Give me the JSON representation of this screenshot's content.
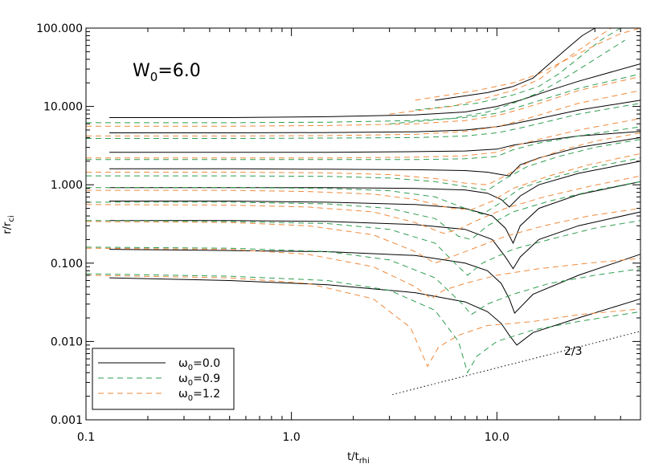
{
  "chart_data": {
    "type": "line",
    "xscale": "log",
    "yscale": "log",
    "xlim": [
      0.1,
      50
    ],
    "ylim": [
      0.001,
      100
    ],
    "xlabel_main": "t/t",
    "xlabel_sub": "rhi",
    "ylabel_main": "r/r",
    "ylabel_sub": "ci",
    "x_ticks": [
      {
        "v": 0.1,
        "label": "0.1"
      },
      {
        "v": 1.0,
        "label": "1.0"
      },
      {
        "v": 10.0,
        "label": "10.0"
      }
    ],
    "y_ticks": [
      {
        "v": 0.001,
        "label": "0.001"
      },
      {
        "v": 0.01,
        "label": "0.010"
      },
      {
        "v": 0.1,
        "label": "0.100"
      },
      {
        "v": 1.0,
        "label": "1.000"
      },
      {
        "v": 10.0,
        "label": "10.000"
      },
      {
        "v": 100.0,
        "label": "100.000"
      }
    ],
    "annotation": {
      "main": "W",
      "sub": "0",
      "rest": "=6.0"
    },
    "slope_line": {
      "x": [
        3.1,
        50
      ],
      "y": [
        0.0021,
        0.0135
      ],
      "label": "2/3"
    },
    "legend": [
      {
        "main": "ω",
        "sub": "0",
        "rest": "=0.0",
        "color": "#000000",
        "dash": "solid"
      },
      {
        "main": "ω",
        "sub": "0",
        "rest": "=0.9",
        "color": "#2e9e52",
        "dash": "dashed"
      },
      {
        "main": "ω",
        "sub": "0",
        "rest": "=1.2",
        "color": "#ef8a3c",
        "dash": "dashed"
      }
    ],
    "series": [
      {
        "group": "w0.0",
        "color": "#000000",
        "dash": "solid",
        "x": [
          0.13,
          0.5,
          1.5,
          4,
          7,
          9,
          10.5,
          11.5,
          12.5,
          15,
          25,
          50
        ],
        "y": [
          0.065,
          0.06,
          0.053,
          0.042,
          0.032,
          0.024,
          0.017,
          0.012,
          0.009,
          0.013,
          0.02,
          0.035
        ]
      },
      {
        "group": "w0.0",
        "color": "#000000",
        "dash": "solid",
        "x": [
          0.13,
          0.5,
          1.5,
          4,
          7,
          9,
          10.5,
          11.5,
          12.2,
          15,
          25,
          50
        ],
        "y": [
          0.15,
          0.145,
          0.14,
          0.125,
          0.1,
          0.08,
          0.055,
          0.035,
          0.023,
          0.04,
          0.07,
          0.13
        ]
      },
      {
        "group": "w0.0",
        "color": "#000000",
        "dash": "solid",
        "x": [
          0.13,
          0.5,
          1.5,
          4,
          7,
          9.5,
          11,
          12,
          13,
          16,
          25,
          50
        ],
        "y": [
          0.35,
          0.35,
          0.34,
          0.31,
          0.27,
          0.2,
          0.12,
          0.085,
          0.12,
          0.2,
          0.3,
          0.45
        ]
      },
      {
        "group": "w0.0",
        "color": "#000000",
        "dash": "solid",
        "x": [
          0.13,
          0.5,
          1.5,
          4,
          7,
          9.5,
          11,
          12,
          13,
          16,
          25,
          50
        ],
        "y": [
          0.62,
          0.62,
          0.6,
          0.56,
          0.5,
          0.4,
          0.28,
          0.18,
          0.3,
          0.5,
          0.75,
          1.1
        ]
      },
      {
        "group": "w0.0",
        "color": "#000000",
        "dash": "solid",
        "x": [
          0.13,
          0.5,
          1.5,
          4,
          7,
          9,
          10.5,
          11.5,
          13,
          16,
          25,
          50
        ],
        "y": [
          0.92,
          0.92,
          0.92,
          0.9,
          0.86,
          0.78,
          0.65,
          0.52,
          0.72,
          1.0,
          1.4,
          2.0
        ]
      },
      {
        "group": "w0.0",
        "color": "#000000",
        "dash": "solid",
        "x": [
          0.13,
          0.5,
          1.5,
          4,
          7,
          9,
          10.5,
          11.5,
          13,
          16,
          25,
          50
        ],
        "y": [
          1.6,
          1.6,
          1.58,
          1.56,
          1.52,
          1.45,
          1.35,
          1.3,
          1.8,
          2.2,
          3.0,
          4.0
        ]
      },
      {
        "group": "w0.0",
        "color": "#000000",
        "dash": "solid",
        "x": [
          0.13,
          0.5,
          1.5,
          4,
          7,
          10,
          12,
          16,
          25,
          50
        ],
        "y": [
          2.6,
          2.6,
          2.6,
          2.65,
          2.7,
          2.85,
          3.2,
          3.6,
          4.2,
          4.8
        ]
      },
      {
        "group": "w0.0",
        "color": "#000000",
        "dash": "solid",
        "x": [
          0.13,
          0.5,
          1.5,
          4,
          7,
          10,
          12,
          16,
          25,
          50
        ],
        "y": [
          4.6,
          4.6,
          4.65,
          4.75,
          5.0,
          5.5,
          6.0,
          7.0,
          9.0,
          12.0
        ]
      },
      {
        "group": "w0.0",
        "color": "#000000",
        "dash": "solid",
        "x": [
          0.13,
          0.5,
          1.5,
          4,
          7,
          10,
          13,
          18,
          25,
          50
        ],
        "y": [
          7.2,
          7.2,
          7.4,
          7.8,
          8.5,
          10.0,
          12.0,
          16.0,
          21.0,
          35.0
        ]
      },
      {
        "group": "w0.0",
        "color": "#000000",
        "dash": "solid",
        "x": [
          5,
          9,
          12,
          15,
          18,
          22,
          26,
          30
        ],
        "y": [
          12,
          15,
          18,
          23,
          35,
          55,
          80,
          100
        ]
      },
      {
        "group": "w0.9",
        "color": "#2e9e52",
        "dash": "dashed",
        "x": [
          0.1,
          0.5,
          1.5,
          3,
          5,
          6.5,
          7.2,
          8,
          10,
          15,
          25,
          50
        ],
        "y": [
          0.073,
          0.068,
          0.06,
          0.045,
          0.025,
          0.01,
          0.004,
          0.0065,
          0.01,
          0.014,
          0.018,
          0.024
        ]
      },
      {
        "group": "w0.9",
        "color": "#2e9e52",
        "dash": "dashed",
        "x": [
          0.1,
          0.5,
          1.5,
          3,
          5,
          6.8,
          7.5,
          9,
          12,
          18,
          30,
          50
        ],
        "y": [
          0.16,
          0.155,
          0.14,
          0.11,
          0.065,
          0.03,
          0.022,
          0.03,
          0.04,
          0.055,
          0.07,
          0.085
        ]
      },
      {
        "group": "w0.9",
        "color": "#2e9e52",
        "dash": "dashed",
        "x": [
          0.1,
          0.5,
          1.5,
          3,
          5,
          6.5,
          7.2,
          8.5,
          12,
          18,
          30,
          50
        ],
        "y": [
          0.35,
          0.34,
          0.32,
          0.27,
          0.18,
          0.09,
          0.07,
          0.1,
          0.15,
          0.2,
          0.28,
          0.35
        ]
      },
      {
        "group": "w0.9",
        "color": "#2e9e52",
        "dash": "dashed",
        "x": [
          0.1,
          0.5,
          1.5,
          3,
          5,
          6.5,
          7.5,
          9,
          12,
          18,
          30,
          50
        ],
        "y": [
          0.6,
          0.6,
          0.57,
          0.5,
          0.37,
          0.22,
          0.2,
          0.3,
          0.45,
          0.62,
          0.85,
          1.1
        ]
      },
      {
        "group": "w0.9",
        "color": "#2e9e52",
        "dash": "dashed",
        "x": [
          0.1,
          0.5,
          1.5,
          3,
          5,
          7,
          8.5,
          10,
          13,
          18,
          30,
          50
        ],
        "y": [
          0.92,
          0.92,
          0.9,
          0.84,
          0.7,
          0.5,
          0.42,
          0.55,
          0.9,
          1.2,
          1.7,
          2.2
        ]
      },
      {
        "group": "w0.9",
        "color": "#2e9e52",
        "dash": "dashed",
        "x": [
          0.1,
          0.5,
          1.5,
          3,
          5,
          7,
          9,
          11,
          14,
          20,
          30,
          50
        ],
        "y": [
          1.3,
          1.3,
          1.28,
          1.22,
          1.1,
          0.95,
          0.85,
          1.2,
          1.7,
          2.3,
          3.0,
          3.8
        ]
      },
      {
        "group": "w0.9",
        "color": "#2e9e52",
        "dash": "dashed",
        "x": [
          0.1,
          0.5,
          1.5,
          4,
          7,
          10,
          12,
          16,
          25,
          50
        ],
        "y": [
          2.1,
          2.1,
          2.1,
          2.1,
          2.15,
          2.3,
          2.8,
          3.4,
          4.2,
          5.5
        ]
      },
      {
        "group": "w0.9",
        "color": "#2e9e52",
        "dash": "dashed",
        "x": [
          0.1,
          0.5,
          1.5,
          4,
          7,
          10,
          13,
          18,
          25,
          50
        ],
        "y": [
          3.9,
          3.9,
          3.95,
          4.0,
          4.2,
          4.6,
          5.3,
          6.5,
          8.0,
          11.0
        ]
      },
      {
        "group": "w0.9",
        "color": "#2e9e52",
        "dash": "dashed",
        "x": [
          0.1,
          0.5,
          1.5,
          4,
          7,
          10,
          13,
          18,
          25,
          50
        ],
        "y": [
          6.2,
          6.2,
          6.3,
          6.6,
          7.2,
          8.2,
          10.0,
          13.0,
          17.0,
          26.0
        ]
      },
      {
        "group": "w0.9",
        "color": "#2e9e52",
        "dash": "dashed",
        "x": [
          4,
          8,
          12,
          16,
          20,
          26,
          32,
          40
        ],
        "y": [
          9,
          11,
          14,
          18,
          26,
          45,
          70,
          100
        ]
      },
      {
        "group": "w0.9",
        "color": "#2e9e52",
        "dash": "dashed",
        "x": [
          3,
          6,
          9,
          12,
          16,
          22,
          30,
          42
        ],
        "y": [
          6,
          7,
          8.5,
          11,
          15,
          24,
          40,
          70
        ]
      },
      {
        "group": "w1.2",
        "color": "#ef8a3c",
        "dash": "dashed",
        "x": [
          0.1,
          0.5,
          1.2,
          2.5,
          3.8,
          4.6,
          5.2,
          6.5,
          9,
          15,
          25,
          50
        ],
        "y": [
          0.07,
          0.065,
          0.055,
          0.035,
          0.015,
          0.0048,
          0.0085,
          0.012,
          0.016,
          0.018,
          0.022,
          0.026
        ]
      },
      {
        "group": "w1.2",
        "color": "#ef8a3c",
        "dash": "dashed",
        "x": [
          0.1,
          0.5,
          1.2,
          2.5,
          4,
          4.8,
          5.5,
          7,
          10,
          16,
          28,
          50
        ],
        "y": [
          0.155,
          0.15,
          0.13,
          0.09,
          0.05,
          0.035,
          0.045,
          0.055,
          0.07,
          0.085,
          0.1,
          0.115
        ]
      },
      {
        "group": "w1.2",
        "color": "#ef8a3c",
        "dash": "dashed",
        "x": [
          0.1,
          0.5,
          1.2,
          2.5,
          4,
          5,
          6,
          8,
          11,
          17,
          28,
          50
        ],
        "y": [
          0.34,
          0.33,
          0.3,
          0.23,
          0.14,
          0.1,
          0.12,
          0.16,
          0.22,
          0.3,
          0.4,
          0.5
        ]
      },
      {
        "group": "w1.2",
        "color": "#ef8a3c",
        "dash": "dashed",
        "x": [
          0.1,
          0.5,
          1.2,
          2.5,
          4,
          5.5,
          6.5,
          8,
          11,
          17,
          28,
          50
        ],
        "y": [
          0.56,
          0.55,
          0.52,
          0.45,
          0.33,
          0.24,
          0.27,
          0.35,
          0.5,
          0.7,
          0.95,
          1.3
        ]
      },
      {
        "group": "w1.2",
        "color": "#ef8a3c",
        "dash": "dashed",
        "x": [
          0.1,
          0.5,
          1.2,
          2.5,
          4,
          6,
          7.5,
          9.5,
          12,
          18,
          28,
          50
        ],
        "y": [
          0.85,
          0.85,
          0.82,
          0.76,
          0.65,
          0.5,
          0.48,
          0.62,
          0.9,
          1.3,
          1.8,
          2.5
        ]
      },
      {
        "group": "w1.2",
        "color": "#ef8a3c",
        "dash": "dashed",
        "x": [
          0.1,
          0.5,
          1.5,
          3,
          5,
          7,
          9,
          11,
          14,
          20,
          30,
          50
        ],
        "y": [
          1.45,
          1.45,
          1.42,
          1.35,
          1.2,
          1.05,
          1.0,
          1.3,
          1.9,
          2.7,
          3.6,
          4.6
        ]
      },
      {
        "group": "w1.2",
        "color": "#ef8a3c",
        "dash": "dashed",
        "x": [
          0.1,
          0.5,
          1.5,
          4,
          7,
          10,
          12,
          16,
          25,
          50
        ],
        "y": [
          2.2,
          2.2,
          2.2,
          2.25,
          2.35,
          2.6,
          3.1,
          3.8,
          5.0,
          7.0
        ]
      },
      {
        "group": "w1.2",
        "color": "#ef8a3c",
        "dash": "dashed",
        "x": [
          0.1,
          0.5,
          1.5,
          4,
          7,
          10,
          13,
          18,
          25,
          50
        ],
        "y": [
          4.2,
          4.2,
          4.25,
          4.4,
          4.8,
          5.5,
          6.6,
          8.5,
          11.0,
          16.0
        ]
      },
      {
        "group": "w1.2",
        "color": "#ef8a3c",
        "dash": "dashed",
        "x": [
          0.1,
          0.5,
          1.5,
          4,
          7,
          10,
          13,
          18,
          25,
          50
        ],
        "y": [
          5.6,
          5.6,
          5.7,
          6.0,
          6.6,
          7.6,
          9.2,
          12.0,
          16.0,
          24.0
        ]
      },
      {
        "group": "w1.2",
        "color": "#ef8a3c",
        "dash": "dashed",
        "x": [
          3,
          6,
          9,
          12,
          16,
          21,
          27,
          36
        ],
        "y": [
          8,
          10,
          13,
          16,
          22,
          38,
          60,
          100
        ]
      },
      {
        "group": "w1.2",
        "color": "#ef8a3c",
        "dash": "dashed",
        "x": [
          4,
          8,
          12,
          16,
          22,
          30,
          40,
          50
        ],
        "y": [
          12,
          16,
          20,
          26,
          40,
          60,
          85,
          100
        ]
      }
    ]
  }
}
